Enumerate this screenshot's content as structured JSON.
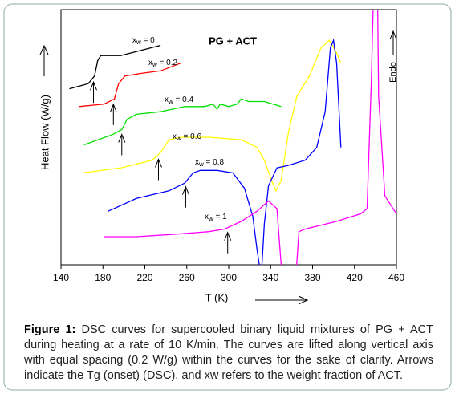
{
  "chart_data": {
    "type": "line",
    "title": "PG + ACT",
    "x_label": "T (K)",
    "y_label": "Heat Flow (W/g)",
    "annotation": "Endo",
    "xlim": [
      140,
      460
    ],
    "xticks": [
      140,
      180,
      220,
      260,
      300,
      340,
      380,
      420,
      460
    ],
    "ylim": [
      0,
      100
    ],
    "series": [
      {
        "name": "xw = 0",
        "color": "#000000",
        "tg": 171,
        "x": [
          148,
          166,
          172,
          175,
          178,
          185,
          197,
          216,
          235
        ],
        "values": [
          69,
          71,
          74,
          80,
          82,
          82,
          82,
          84,
          86
        ]
      },
      {
        "name": "xw = 0.2",
        "color": "#ff0000",
        "tg": 190,
        "x": [
          157,
          181,
          191,
          195,
          201,
          216,
          235,
          254
        ],
        "values": [
          62,
          63,
          65,
          71,
          74,
          75,
          76,
          79
        ]
      },
      {
        "name": "xw = 0.4",
        "color": "#00e000",
        "tg": 198,
        "x": [
          162,
          189,
          198,
          203,
          212,
          235,
          258,
          277,
          285,
          289,
          292,
          300,
          308,
          312,
          319,
          334,
          350
        ],
        "values": [
          47,
          51,
          53,
          57,
          59,
          60,
          62,
          62,
          63,
          61,
          63,
          62,
          63,
          65,
          64,
          64,
          62
        ]
      },
      {
        "name": "xw = 0.6",
        "color": "#ffff00",
        "tg": 233,
        "x": [
          160,
          197,
          227,
          235,
          243,
          254,
          281,
          312,
          327,
          334,
          341,
          345,
          350,
          357,
          365,
          377,
          388,
          396,
          403,
          407
        ],
        "values": [
          36,
          38,
          41,
          44,
          49,
          50,
          50,
          49,
          46,
          41,
          33,
          29,
          33,
          52,
          66,
          74,
          85,
          88,
          83,
          79
        ]
      },
      {
        "name": "xw = 0.8",
        "color": "#0000ff",
        "tg": 259,
        "x": [
          185,
          212,
          243,
          258,
          266,
          273,
          289,
          304,
          315,
          323,
          327,
          331,
          334,
          338,
          346,
          357,
          373,
          384,
          392,
          397,
          400,
          403,
          407
        ],
        "values": [
          21,
          26,
          29,
          32,
          36,
          37,
          37,
          36,
          30,
          19,
          6,
          -5,
          16,
          31,
          38,
          39,
          41,
          46,
          60,
          85,
          88,
          79,
          46
        ]
      },
      {
        "name": "xw = 1",
        "color": "#ff00ff",
        "tg": 299,
        "x": [
          181,
          212,
          250,
          281,
          296,
          312,
          327,
          338,
          346,
          351,
          364,
          367,
          373,
          403,
          426,
          432,
          436,
          438,
          442,
          443,
          449,
          460
        ],
        "values": [
          11,
          11,
          12,
          13,
          14,
          17,
          21,
          25,
          22,
          -5,
          -5,
          13,
          14,
          17,
          20,
          22,
          72,
          105,
          105,
          66,
          27,
          20
        ]
      }
    ]
  },
  "caption": {
    "label": "Figure 1:",
    "text": "DSC curves for supercooled binary liquid mixtures of PG + ACT during heating at a rate of 10 K/min. The curves are lifted along vertical axis with equal spacing (0.2 W/g) within the curves for the sake of clarity. Arrows indicate the Tg (onset) (DSC), and xw refers to the weight fraction of ACT."
  }
}
